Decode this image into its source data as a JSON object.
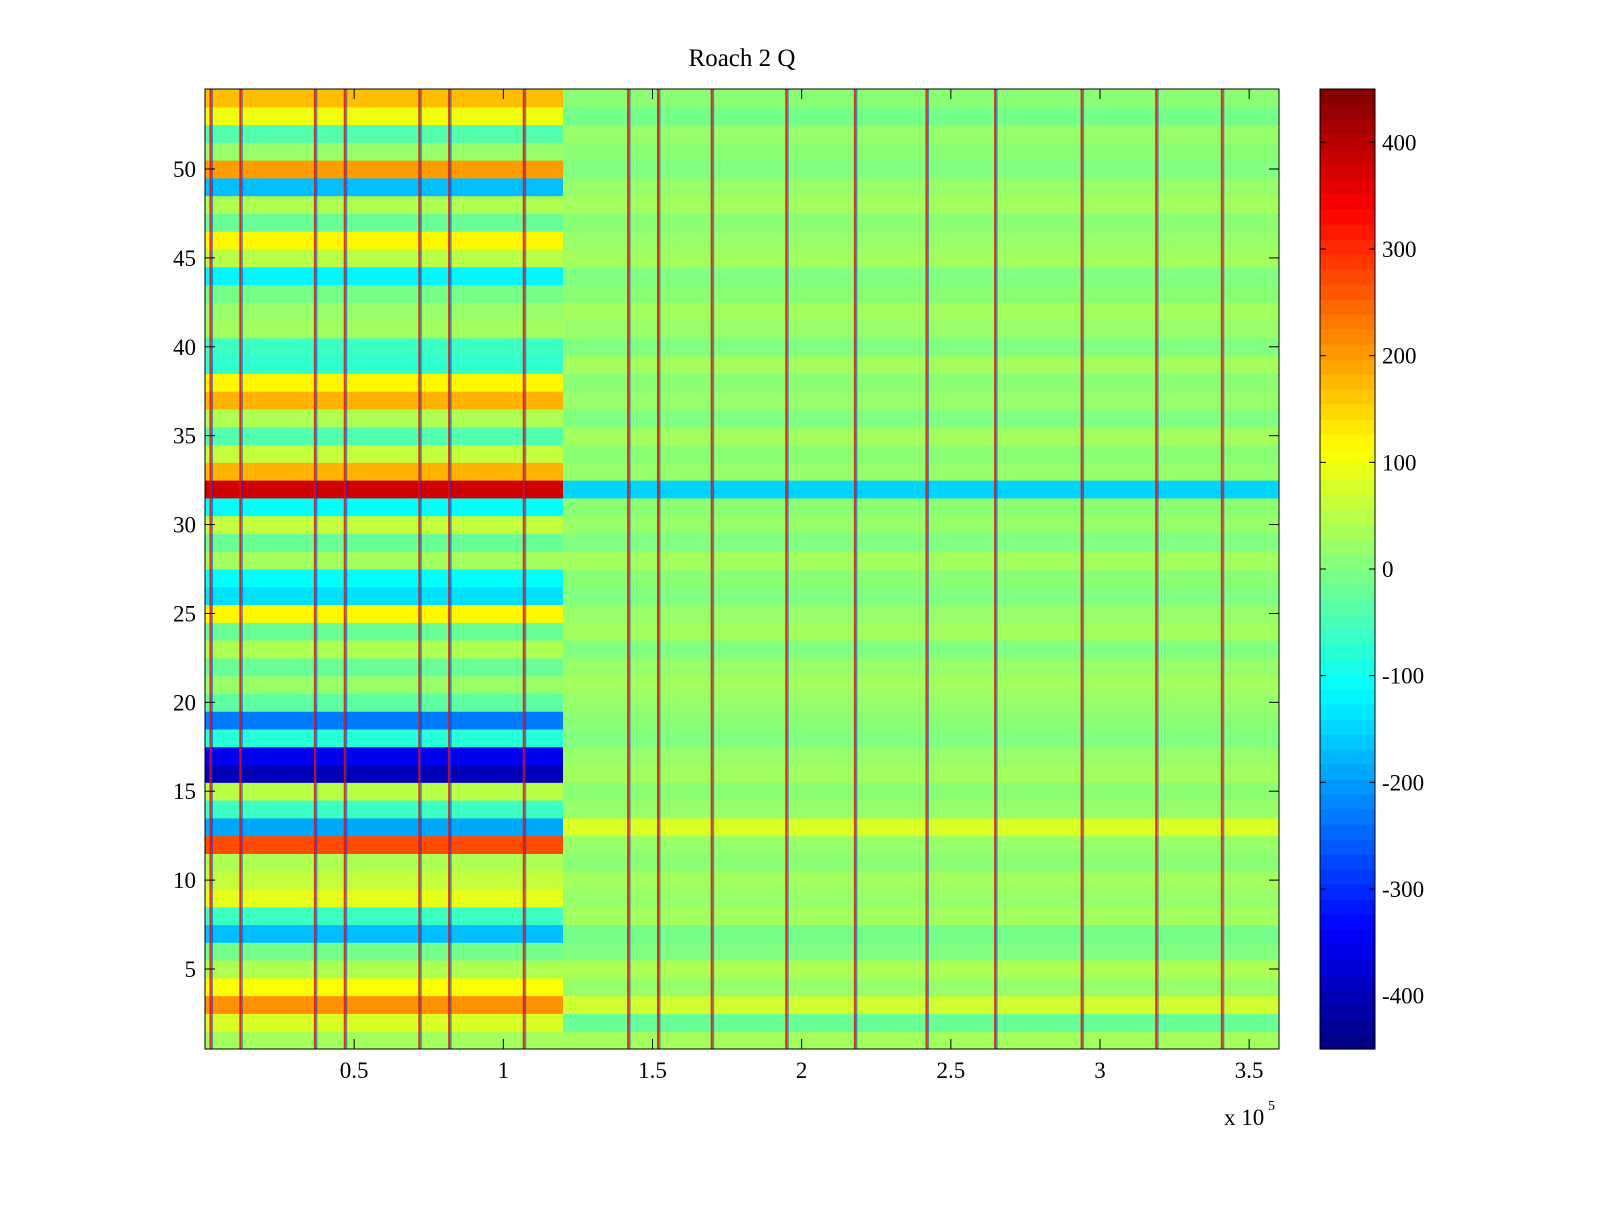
{
  "chart_data": {
    "type": "heatmap",
    "title": "Roach 2 Q",
    "xlabel": "",
    "ylabel": "",
    "x_multiplier_label": "x 10",
    "x_multiplier_exponent": "5",
    "xlim": [
      0,
      3.6
    ],
    "ylim": [
      0.5,
      54.5
    ],
    "xticks": [
      0.5,
      1,
      1.5,
      2,
      2.5,
      3,
      3.5
    ],
    "xtick_labels": [
      "0.5",
      "1",
      "1.5",
      "2",
      "2.5",
      "3",
      "3.5"
    ],
    "yticks": [
      5,
      10,
      15,
      20,
      25,
      30,
      35,
      40,
      45,
      50
    ],
    "ytick_labels": [
      "5",
      "10",
      "15",
      "20",
      "25",
      "30",
      "35",
      "40",
      "45",
      "50"
    ],
    "colorbar": {
      "colormap": "jet",
      "range": [
        -450,
        450
      ],
      "ticks": [
        400,
        300,
        200,
        100,
        0,
        -100,
        -200,
        -300,
        -400
      ],
      "tick_labels": [
        "400",
        "300",
        "200",
        "100",
        "0",
        "-100",
        "-200",
        "-300",
        "-400"
      ]
    },
    "rows": 54,
    "segment_boundary_x": 1.2,
    "segment1_row_values": [
      {
        "row": 1,
        "value": 30
      },
      {
        "row": 2,
        "value": 80
      },
      {
        "row": 3,
        "value": 210
      },
      {
        "row": 4,
        "value": 110
      },
      {
        "row": 5,
        "value": 40
      },
      {
        "row": 6,
        "value": -10
      },
      {
        "row": 7,
        "value": -170
      },
      {
        "row": 8,
        "value": -60
      },
      {
        "row": 9,
        "value": 90
      },
      {
        "row": 10,
        "value": 60
      },
      {
        "row": 11,
        "value": 40
      },
      {
        "row": 12,
        "value": 270
      },
      {
        "row": 13,
        "value": -190
      },
      {
        "row": 14,
        "value": -60
      },
      {
        "row": 15,
        "value": 50
      },
      {
        "row": 16,
        "value": -400
      },
      {
        "row": 17,
        "value": -350
      },
      {
        "row": 18,
        "value": -80
      },
      {
        "row": 19,
        "value": -230
      },
      {
        "row": 20,
        "value": -30
      },
      {
        "row": 21,
        "value": 20
      },
      {
        "row": 22,
        "value": -20
      },
      {
        "row": 23,
        "value": 40
      },
      {
        "row": 24,
        "value": -20
      },
      {
        "row": 25,
        "value": 120
      },
      {
        "row": 26,
        "value": -140
      },
      {
        "row": 27,
        "value": -110
      },
      {
        "row": 28,
        "value": 30
      },
      {
        "row": 29,
        "value": -20
      },
      {
        "row": 30,
        "value": 60
      },
      {
        "row": 31,
        "value": -110
      },
      {
        "row": 32,
        "value": 380
      },
      {
        "row": 33,
        "value": 180
      },
      {
        "row": 34,
        "value": 60
      },
      {
        "row": 35,
        "value": -40
      },
      {
        "row": 36,
        "value": 40
      },
      {
        "row": 37,
        "value": 180
      },
      {
        "row": 38,
        "value": 120
      },
      {
        "row": 39,
        "value": -70
      },
      {
        "row": 40,
        "value": -60
      },
      {
        "row": 41,
        "value": 30
      },
      {
        "row": 42,
        "value": 20
      },
      {
        "row": 43,
        "value": -10
      },
      {
        "row": 44,
        "value": -120
      },
      {
        "row": 45,
        "value": 50
      },
      {
        "row": 46,
        "value": 120
      },
      {
        "row": 47,
        "value": -20
      },
      {
        "row": 48,
        "value": 40
      },
      {
        "row": 49,
        "value": -170
      },
      {
        "row": 50,
        "value": 200
      },
      {
        "row": 51,
        "value": 20
      },
      {
        "row": 52,
        "value": -40
      },
      {
        "row": 53,
        "value": 100
      },
      {
        "row": 54,
        "value": 170
      }
    ],
    "segment2_row_values": [
      {
        "row": 1,
        "value": 30
      },
      {
        "row": 2,
        "value": -20
      },
      {
        "row": 3,
        "value": 70
      },
      {
        "row": 4,
        "value": 20
      },
      {
        "row": 5,
        "value": 40
      },
      {
        "row": 6,
        "value": 0
      },
      {
        "row": 7,
        "value": -10
      },
      {
        "row": 8,
        "value": 30
      },
      {
        "row": 9,
        "value": 20
      },
      {
        "row": 10,
        "value": 30
      },
      {
        "row": 11,
        "value": 10
      },
      {
        "row": 12,
        "value": 20
      },
      {
        "row": 13,
        "value": 80
      },
      {
        "row": 14,
        "value": 20
      },
      {
        "row": 15,
        "value": 10
      },
      {
        "row": 16,
        "value": 30
      },
      {
        "row": 17,
        "value": 20
      },
      {
        "row": 18,
        "value": 0
      },
      {
        "row": 19,
        "value": 10
      },
      {
        "row": 20,
        "value": 20
      },
      {
        "row": 21,
        "value": 30
      },
      {
        "row": 22,
        "value": 20
      },
      {
        "row": 23,
        "value": 0
      },
      {
        "row": 24,
        "value": 30
      },
      {
        "row": 25,
        "value": 20
      },
      {
        "row": 26,
        "value": 0
      },
      {
        "row": 27,
        "value": 10
      },
      {
        "row": 28,
        "value": 30
      },
      {
        "row": 29,
        "value": 0
      },
      {
        "row": 30,
        "value": 20
      },
      {
        "row": 31,
        "value": 10
      },
      {
        "row": 32,
        "value": -150
      },
      {
        "row": 33,
        "value": 20
      },
      {
        "row": 34,
        "value": 10
      },
      {
        "row": 35,
        "value": 30
      },
      {
        "row": 36,
        "value": 0
      },
      {
        "row": 37,
        "value": 20
      },
      {
        "row": 38,
        "value": 10
      },
      {
        "row": 39,
        "value": 30
      },
      {
        "row": 40,
        "value": 0
      },
      {
        "row": 41,
        "value": 20
      },
      {
        "row": 42,
        "value": 30
      },
      {
        "row": 43,
        "value": 10
      },
      {
        "row": 44,
        "value": 0
      },
      {
        "row": 45,
        "value": 30
      },
      {
        "row": 46,
        "value": 20
      },
      {
        "row": 47,
        "value": 10
      },
      {
        "row": 48,
        "value": 30
      },
      {
        "row": 49,
        "value": 20
      },
      {
        "row": 50,
        "value": 0
      },
      {
        "row": 51,
        "value": 10
      },
      {
        "row": 52,
        "value": 20
      },
      {
        "row": 53,
        "value": -10
      },
      {
        "row": 54,
        "value": 10
      }
    ],
    "vertical_stripes": [
      {
        "x": 0.02,
        "pattern": "red-blue"
      },
      {
        "x": 0.12,
        "pattern": "red-blue"
      },
      {
        "x": 0.37,
        "pattern": "red-blue"
      },
      {
        "x": 0.47,
        "pattern": "red-blue"
      },
      {
        "x": 0.72,
        "pattern": "red-blue"
      },
      {
        "x": 0.82,
        "pattern": "red-blue"
      },
      {
        "x": 1.07,
        "pattern": "red-blue"
      },
      {
        "x": 1.42,
        "pattern": "red-blue"
      },
      {
        "x": 1.52,
        "pattern": "red-blue"
      },
      {
        "x": 1.7,
        "pattern": "red-blue"
      },
      {
        "x": 1.95,
        "pattern": "red-blue"
      },
      {
        "x": 2.18,
        "pattern": "red-blue"
      },
      {
        "x": 2.42,
        "pattern": "red-blue"
      },
      {
        "x": 2.65,
        "pattern": "red-blue"
      },
      {
        "x": 2.94,
        "pattern": "red-blue"
      },
      {
        "x": 3.19,
        "pattern": "red-blue"
      },
      {
        "x": 3.41,
        "pattern": "red-blue"
      }
    ]
  }
}
